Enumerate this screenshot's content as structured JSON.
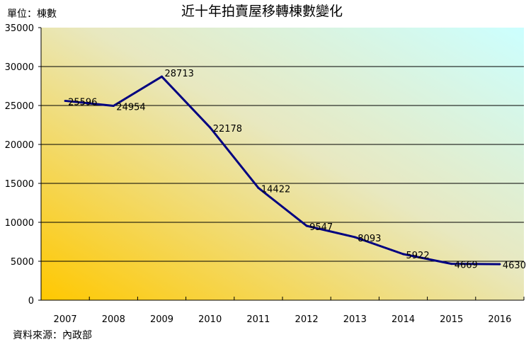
{
  "chart_data": {
    "type": "line",
    "title": "近十年拍賣屋移轉棟數變化",
    "unit_label": "單位：棟數",
    "source": "資料來源：內政部",
    "categories": [
      "2007",
      "2008",
      "2009",
      "2010",
      "2011",
      "2012",
      "2013",
      "2014",
      "2015",
      "2016"
    ],
    "values": [
      25596,
      24954,
      28713,
      22178,
      14422,
      9547,
      8093,
      5922,
      4669,
      4630
    ],
    "yticks": [
      "0",
      "5000",
      "10000",
      "15000",
      "20000",
      "25000",
      "30000",
      "35000"
    ],
    "ylim": [
      0,
      35000
    ],
    "grid": true,
    "line_color": "#000080",
    "background_gradient": [
      "#FFC800",
      "#CCFFFF"
    ]
  }
}
